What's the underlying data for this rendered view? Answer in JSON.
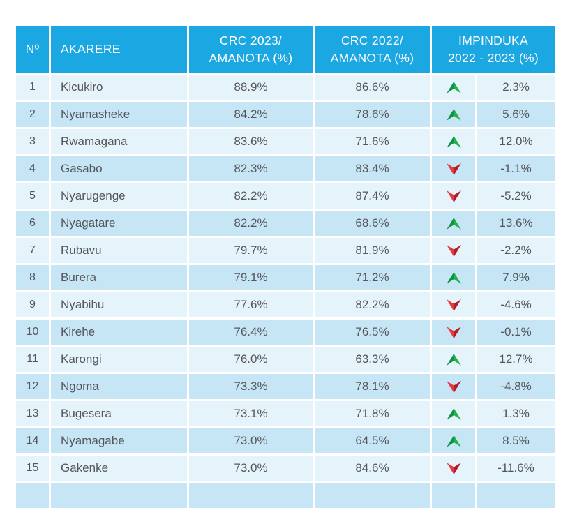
{
  "colors": {
    "header_bg": "#1BA7E1",
    "row_odd": "#E5F3FB",
    "row_even": "#C6E5F5",
    "body_text": "#55565B",
    "up_dark": "#0B9448",
    "up_light": "#27B14C",
    "down_light": "#E23B44",
    "down_dark": "#B01E29"
  },
  "table": {
    "header_cells": [
      {
        "id": "no",
        "line1": "Nº"
      },
      {
        "id": "akarere",
        "line1": "AKARERE"
      },
      {
        "id": "crc2023",
        "line1": "CRC 2023/",
        "line2": "AMANOTA (%)"
      },
      {
        "id": "crc2022",
        "line1": "CRC 2022/",
        "line2": "AMANOTA (%)"
      },
      {
        "id": "impinduka",
        "line1": "IMPINDUKA",
        "line2": "2022 - 2023 (%)"
      }
    ],
    "rows": [
      {
        "no": "1",
        "district": "Kicukiro",
        "crc_2023": "88.9%",
        "crc_2022": "86.6%",
        "trend": "up",
        "change": "2.3%"
      },
      {
        "no": "2",
        "district": "Nyamasheke",
        "crc_2023": "84.2%",
        "crc_2022": "78.6%",
        "trend": "up",
        "change": "5.6%"
      },
      {
        "no": "3",
        "district": "Rwamagana",
        "crc_2023": "83.6%",
        "crc_2022": "71.6%",
        "trend": "up",
        "change": "12.0%"
      },
      {
        "no": "4",
        "district": "Gasabo",
        "crc_2023": "82.3%",
        "crc_2022": "83.4%",
        "trend": "down",
        "change": "-1.1%"
      },
      {
        "no": "5",
        "district": "Nyarugenge",
        "crc_2023": "82.2%",
        "crc_2022": "87.4%",
        "trend": "down",
        "change": "-5.2%"
      },
      {
        "no": "6",
        "district": "Nyagatare",
        "crc_2023": "82.2%",
        "crc_2022": "68.6%",
        "trend": "up",
        "change": "13.6%"
      },
      {
        "no": "7",
        "district": "Rubavu",
        "crc_2023": "79.7%",
        "crc_2022": "81.9%",
        "trend": "down",
        "change": "-2.2%"
      },
      {
        "no": "8",
        "district": "Burera",
        "crc_2023": "79.1%",
        "crc_2022": "71.2%",
        "trend": "up",
        "change": "7.9%"
      },
      {
        "no": "9",
        "district": "Nyabihu",
        "crc_2023": "77.6%",
        "crc_2022": "82.2%",
        "trend": "down",
        "change": "-4.6%"
      },
      {
        "no": "10",
        "district": "Kirehe",
        "crc_2023": "76.4%",
        "crc_2022": "76.5%",
        "trend": "down",
        "change": "-0.1%"
      },
      {
        "no": "11",
        "district": "Karongi",
        "crc_2023": "76.0%",
        "crc_2022": "63.3%",
        "trend": "up",
        "change": "12.7%"
      },
      {
        "no": "12",
        "district": "Ngoma",
        "crc_2023": "73.3%",
        "crc_2022": "78.1%",
        "trend": "down",
        "change": "-4.8%"
      },
      {
        "no": "13",
        "district": "Bugesera",
        "crc_2023": "73.1%",
        "crc_2022": "71.8%",
        "trend": "up",
        "change": "1.3%"
      },
      {
        "no": "14",
        "district": "Nyamagabe",
        "crc_2023": "73.0%",
        "crc_2022": "64.5%",
        "trend": "up",
        "change": "8.5%"
      },
      {
        "no": "15",
        "district": "Gakenke",
        "crc_2023": "73.0%",
        "crc_2022": "84.6%",
        "trend": "down",
        "change": "-11.6%"
      }
    ]
  }
}
